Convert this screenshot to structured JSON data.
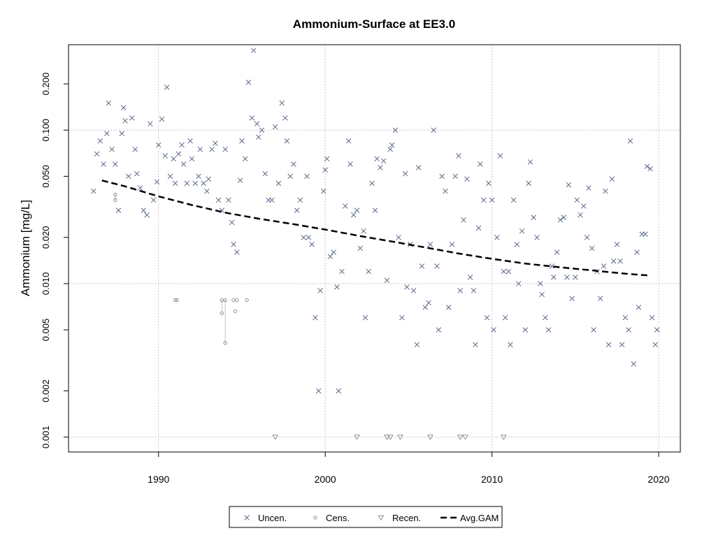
{
  "chart_data": {
    "type": "scatter",
    "title": "Ammonium-Surface at EE3.0",
    "xlabel": "",
    "ylabel": "Ammonium [mg/L]",
    "x_range": [
      1984.6,
      2021.3
    ],
    "ylim": [
      0.0008,
      0.36
    ],
    "y_scale": "log",
    "x_ticks": [
      1990,
      2000,
      2010,
      2020
    ],
    "x_tick_labels": [
      "1990",
      "2000",
      "2010",
      "2020"
    ],
    "y_ticks": [
      0.001,
      0.002,
      0.005,
      0.01,
      0.02,
      0.05,
      0.1,
      0.2
    ],
    "y_tick_labels": [
      "0.001",
      "0.002",
      "0.005",
      "0.010",
      "0.020",
      "0.050",
      "0.100",
      "0.200"
    ],
    "grid": true,
    "legend_position": "bottom-center",
    "colors": {
      "uncen": "#5a6a8a",
      "cens": "#888888",
      "recen": "#888888",
      "gam": "#000000",
      "grid": "#c8c8c8"
    },
    "legend": [
      {
        "key": "uncen",
        "label": "Uncen.",
        "symbol": "cross"
      },
      {
        "key": "cens",
        "label": "Cens.",
        "symbol": "circle"
      },
      {
        "key": "recen",
        "label": "Recen.",
        "symbol": "triangle"
      },
      {
        "key": "gam",
        "label": "Avg.GAM",
        "symbol": "dashed-line"
      }
    ],
    "series": [
      {
        "name": "Uncen.",
        "points": [
          [
            1986.1,
            0.04
          ],
          [
            1986.3,
            0.07
          ],
          [
            1986.5,
            0.085
          ],
          [
            1986.7,
            0.06
          ],
          [
            1986.9,
            0.095
          ],
          [
            1987.0,
            0.15
          ],
          [
            1987.2,
            0.075
          ],
          [
            1987.4,
            0.06
          ],
          [
            1987.6,
            0.03
          ],
          [
            1987.8,
            0.095
          ],
          [
            1987.9,
            0.14
          ],
          [
            1988.0,
            0.115
          ],
          [
            1988.2,
            0.05
          ],
          [
            1988.4,
            0.12
          ],
          [
            1988.6,
            0.075
          ],
          [
            1988.7,
            0.052
          ],
          [
            1988.9,
            0.042
          ],
          [
            1989.1,
            0.03
          ],
          [
            1989.3,
            0.028
          ],
          [
            1989.5,
            0.11
          ],
          [
            1989.7,
            0.035
          ],
          [
            1989.9,
            0.046
          ],
          [
            1990.0,
            0.08
          ],
          [
            1990.2,
            0.118
          ],
          [
            1990.4,
            0.068
          ],
          [
            1990.5,
            0.19
          ],
          [
            1990.7,
            0.05
          ],
          [
            1990.9,
            0.065
          ],
          [
            1991.0,
            0.045
          ],
          [
            1991.2,
            0.07
          ],
          [
            1991.4,
            0.08
          ],
          [
            1991.5,
            0.06
          ],
          [
            1991.7,
            0.045
          ],
          [
            1991.9,
            0.085
          ],
          [
            1992.0,
            0.065
          ],
          [
            1992.2,
            0.045
          ],
          [
            1992.4,
            0.05
          ],
          [
            1992.5,
            0.075
          ],
          [
            1992.7,
            0.045
          ],
          [
            1992.9,
            0.04
          ],
          [
            1993.0,
            0.048
          ],
          [
            1993.2,
            0.075
          ],
          [
            1993.4,
            0.082
          ],
          [
            1993.6,
            0.035
          ],
          [
            1993.8,
            0.03
          ],
          [
            1994.0,
            0.075
          ],
          [
            1994.2,
            0.035
          ],
          [
            1994.4,
            0.025
          ],
          [
            1994.5,
            0.018
          ],
          [
            1994.7,
            0.016
          ],
          [
            1994.9,
            0.047
          ],
          [
            1995.0,
            0.085
          ],
          [
            1995.2,
            0.065
          ],
          [
            1995.4,
            0.205
          ],
          [
            1995.6,
            0.12
          ],
          [
            1995.7,
            0.33
          ],
          [
            1995.9,
            0.11
          ],
          [
            1996.0,
            0.09
          ],
          [
            1996.2,
            0.1
          ],
          [
            1996.4,
            0.052
          ],
          [
            1996.6,
            0.035
          ],
          [
            1996.8,
            0.035
          ],
          [
            1997.0,
            0.105
          ],
          [
            1997.2,
            0.045
          ],
          [
            1997.4,
            0.15
          ],
          [
            1997.6,
            0.12
          ],
          [
            1997.7,
            0.085
          ],
          [
            1997.9,
            0.05
          ],
          [
            1998.1,
            0.06
          ],
          [
            1998.3,
            0.03
          ],
          [
            1998.5,
            0.035
          ],
          [
            1998.7,
            0.02
          ],
          [
            1998.9,
            0.05
          ],
          [
            1999.0,
            0.02
          ],
          [
            1999.2,
            0.018
          ],
          [
            1999.4,
            0.006
          ],
          [
            1999.6,
            0.002
          ],
          [
            1999.7,
            0.009
          ],
          [
            1999.9,
            0.04
          ],
          [
            2000.0,
            0.055
          ],
          [
            2000.1,
            0.065
          ],
          [
            2000.3,
            0.015
          ],
          [
            2000.5,
            0.016
          ],
          [
            2000.7,
            0.0095
          ],
          [
            2000.8,
            0.002
          ],
          [
            2001.0,
            0.012
          ],
          [
            2001.2,
            0.032
          ],
          [
            2001.4,
            0.085
          ],
          [
            2001.5,
            0.06
          ],
          [
            2001.7,
            0.028
          ],
          [
            2001.9,
            0.03
          ],
          [
            2002.1,
            0.017
          ],
          [
            2002.3,
            0.022
          ],
          [
            2002.4,
            0.006
          ],
          [
            2002.6,
            0.012
          ],
          [
            2002.8,
            0.045
          ],
          [
            2003.0,
            0.03
          ],
          [
            2003.1,
            0.065
          ],
          [
            2003.3,
            0.057
          ],
          [
            2003.5,
            0.063
          ],
          [
            2003.7,
            0.0105
          ],
          [
            2003.9,
            0.075
          ],
          [
            2004.0,
            0.08
          ],
          [
            2004.2,
            0.1
          ],
          [
            2004.4,
            0.02
          ],
          [
            2004.6,
            0.006
          ],
          [
            2004.8,
            0.052
          ],
          [
            2004.9,
            0.0095
          ],
          [
            2005.1,
            0.018
          ],
          [
            2005.3,
            0.009
          ],
          [
            2005.5,
            0.004
          ],
          [
            2005.6,
            0.057
          ],
          [
            2005.8,
            0.013
          ],
          [
            2006.0,
            0.007
          ],
          [
            2006.2,
            0.0075
          ],
          [
            2006.3,
            0.018
          ],
          [
            2006.5,
            0.1
          ],
          [
            2006.7,
            0.013
          ],
          [
            2006.8,
            0.005
          ],
          [
            2007.0,
            0.05
          ],
          [
            2007.2,
            0.04
          ],
          [
            2007.4,
            0.007
          ],
          [
            2007.6,
            0.018
          ],
          [
            2007.8,
            0.05
          ],
          [
            2008.0,
            0.068
          ],
          [
            2008.1,
            0.009
          ],
          [
            2008.3,
            0.026
          ],
          [
            2008.5,
            0.048
          ],
          [
            2008.7,
            0.011
          ],
          [
            2008.9,
            0.009
          ],
          [
            2009.0,
            0.004
          ],
          [
            2009.2,
            0.023
          ],
          [
            2009.3,
            0.06
          ],
          [
            2009.5,
            0.035
          ],
          [
            2009.7,
            0.006
          ],
          [
            2009.8,
            0.045
          ],
          [
            2010.0,
            0.035
          ],
          [
            2010.1,
            0.005
          ],
          [
            2010.3,
            0.02
          ],
          [
            2010.5,
            0.068
          ],
          [
            2010.7,
            0.012
          ],
          [
            2010.8,
            0.006
          ],
          [
            2011.0,
            0.012
          ],
          [
            2011.1,
            0.004
          ],
          [
            2011.3,
            0.035
          ],
          [
            2011.5,
            0.018
          ],
          [
            2011.6,
            0.01
          ],
          [
            2011.8,
            0.022
          ],
          [
            2012.0,
            0.005
          ],
          [
            2012.2,
            0.045
          ],
          [
            2012.3,
            0.062
          ],
          [
            2012.5,
            0.027
          ],
          [
            2012.7,
            0.02
          ],
          [
            2012.9,
            0.01
          ],
          [
            2013.0,
            0.0085
          ],
          [
            2013.2,
            0.006
          ],
          [
            2013.4,
            0.005
          ],
          [
            2013.6,
            0.013
          ],
          [
            2013.7,
            0.011
          ],
          [
            2013.9,
            0.016
          ],
          [
            2014.1,
            0.026
          ],
          [
            2014.3,
            0.027
          ],
          [
            2014.5,
            0.011
          ],
          [
            2014.6,
            0.044
          ],
          [
            2014.8,
            0.008
          ],
          [
            2015.0,
            0.011
          ],
          [
            2015.1,
            0.035
          ],
          [
            2015.3,
            0.028
          ],
          [
            2015.5,
            0.032
          ],
          [
            2015.7,
            0.02
          ],
          [
            2015.8,
            0.042
          ],
          [
            2016.0,
            0.017
          ],
          [
            2016.1,
            0.005
          ],
          [
            2016.3,
            0.012
          ],
          [
            2016.5,
            0.008
          ],
          [
            2016.7,
            0.013
          ],
          [
            2016.8,
            0.04
          ],
          [
            2017.0,
            0.004
          ],
          [
            2017.2,
            0.048
          ],
          [
            2017.3,
            0.014
          ],
          [
            2017.5,
            0.018
          ],
          [
            2017.7,
            0.014
          ],
          [
            2017.8,
            0.004
          ],
          [
            2018.0,
            0.006
          ],
          [
            2018.2,
            0.005
          ],
          [
            2018.3,
            0.085
          ],
          [
            2018.5,
            0.003
          ],
          [
            2018.7,
            0.016
          ],
          [
            2018.8,
            0.007
          ],
          [
            2019.0,
            0.021
          ],
          [
            2019.2,
            0.021
          ],
          [
            2019.3,
            0.058
          ],
          [
            2019.5,
            0.056
          ],
          [
            2019.6,
            0.006
          ],
          [
            2019.8,
            0.004
          ],
          [
            2019.9,
            0.005
          ]
        ]
      },
      {
        "name": "Cens.",
        "points": [
          [
            1987.4,
            0.038
          ],
          [
            1987.4,
            0.035
          ],
          [
            1991.0,
            0.0078
          ],
          [
            1991.1,
            0.0078
          ],
          [
            1993.8,
            0.0078
          ],
          [
            1993.8,
            0.0064
          ],
          [
            1994.0,
            0.0078
          ],
          [
            1994.0,
            0.0041
          ],
          [
            1994.5,
            0.0078
          ],
          [
            1994.6,
            0.0066
          ],
          [
            1994.7,
            0.0078
          ],
          [
            1995.3,
            0.0078
          ]
        ]
      },
      {
        "name": "Recen.",
        "points": [
          [
            1997.0,
            0.001
          ],
          [
            2001.9,
            0.001
          ],
          [
            2003.7,
            0.001
          ],
          [
            2003.9,
            0.001
          ],
          [
            2004.5,
            0.001
          ],
          [
            2006.3,
            0.001
          ],
          [
            2008.1,
            0.001
          ],
          [
            2008.4,
            0.001
          ],
          [
            2010.7,
            0.001
          ]
        ]
      },
      {
        "name": "Avg.GAM",
        "points": [
          [
            1986.6,
            0.047
          ],
          [
            1988.0,
            0.043
          ],
          [
            1990.0,
            0.037
          ],
          [
            1992.0,
            0.0325
          ],
          [
            1994.0,
            0.029
          ],
          [
            1996.0,
            0.0265
          ],
          [
            1998.0,
            0.0245
          ],
          [
            2000.0,
            0.0225
          ],
          [
            2002.0,
            0.0205
          ],
          [
            2004.0,
            0.0188
          ],
          [
            2006.0,
            0.0172
          ],
          [
            2008.0,
            0.0157
          ],
          [
            2010.0,
            0.0145
          ],
          [
            2012.0,
            0.0135
          ],
          [
            2014.0,
            0.0128
          ],
          [
            2016.0,
            0.0122
          ],
          [
            2018.0,
            0.0116
          ],
          [
            2019.4,
            0.0113
          ]
        ]
      }
    ]
  }
}
